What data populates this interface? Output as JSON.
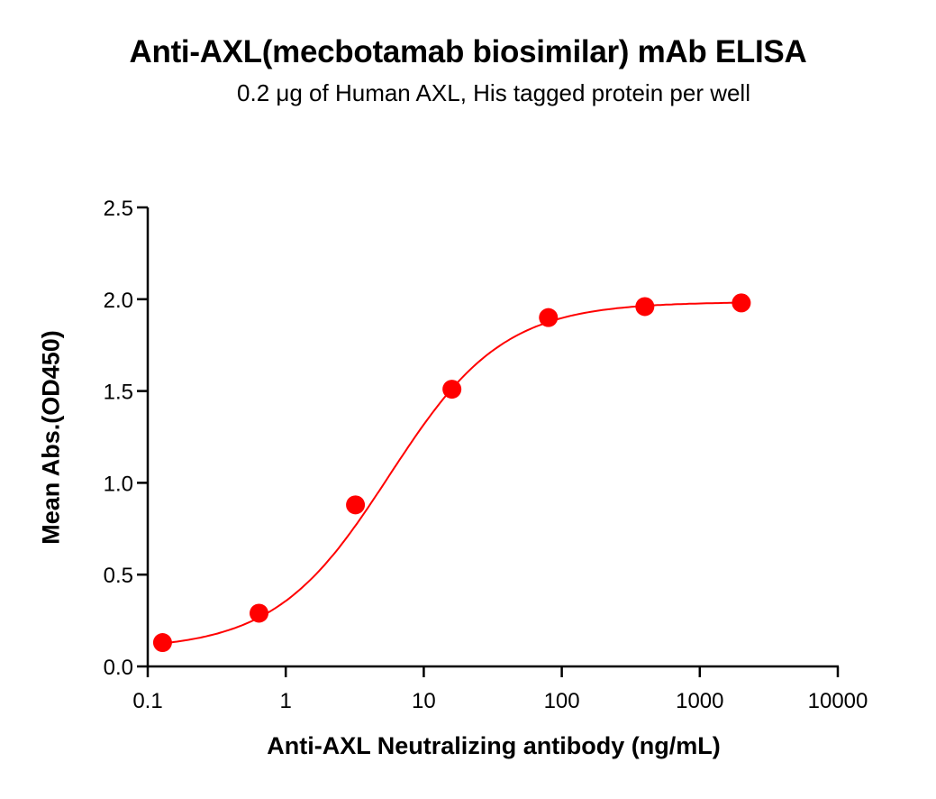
{
  "chart_data": {
    "type": "scatter",
    "title": "Anti-AXL(mecbotamab biosimilar) mAb ELISA",
    "subtitle": "0.2 μg of Human AXL, His tagged protein per well",
    "xlabel": "Anti-AXL Neutralizing antibody (ng/mL)",
    "ylabel": "Mean Abs.(OD450)",
    "xscale": "log",
    "xlim": [
      0.1,
      10000
    ],
    "ylim": [
      0.0,
      2.5
    ],
    "xticks": [
      "0.1",
      "1",
      "10",
      "100",
      "1000",
      "10000"
    ],
    "yticks": [
      "0.0",
      "0.5",
      "1.0",
      "1.5",
      "2.0",
      "2.5"
    ],
    "grid": false,
    "legend": null,
    "series": [
      {
        "name": "Anti-AXL(mecbotamab biosimilar) mAb",
        "color": "#ff0000",
        "marker": "circle",
        "fit": "4PL sigmoidal curve",
        "x": [
          0.128,
          0.64,
          3.2,
          16,
          80,
          400,
          2000
        ],
        "y": [
          0.13,
          0.29,
          0.88,
          1.51,
          1.9,
          1.96,
          1.98
        ]
      }
    ]
  }
}
